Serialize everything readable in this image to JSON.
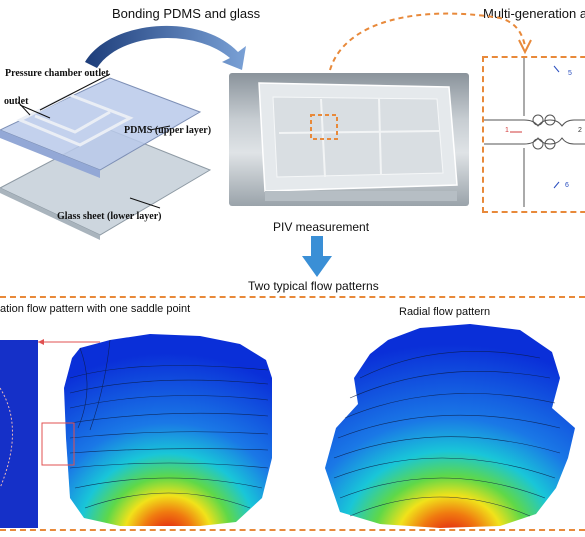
{
  "top": {
    "bonding_label": "Bonding PDMS and glass",
    "multigen_label": "Multi-generation a",
    "piv_label": "PIV measurement",
    "two_patterns_label": "Two typical flow patterns"
  },
  "device": {
    "pressure_outlet": "Pressure chamber outlet",
    "outlet": "outlet",
    "pdms": "PDMS (upper layer)",
    "glass": "Glass sheet (lower layer)"
  },
  "network": {
    "label_1": "1",
    "label_2": "2",
    "label_5": "5",
    "label_6": "6"
  },
  "patterns": {
    "left_title": "ation flow pattern with one saddle point",
    "right_title": "Radial flow pattern"
  },
  "colors": {
    "accent_dash": "#e8893a",
    "arrow_blue": "#3a8fd6",
    "jet_low": "#0a2fd8",
    "jet_high": "#e01010"
  }
}
